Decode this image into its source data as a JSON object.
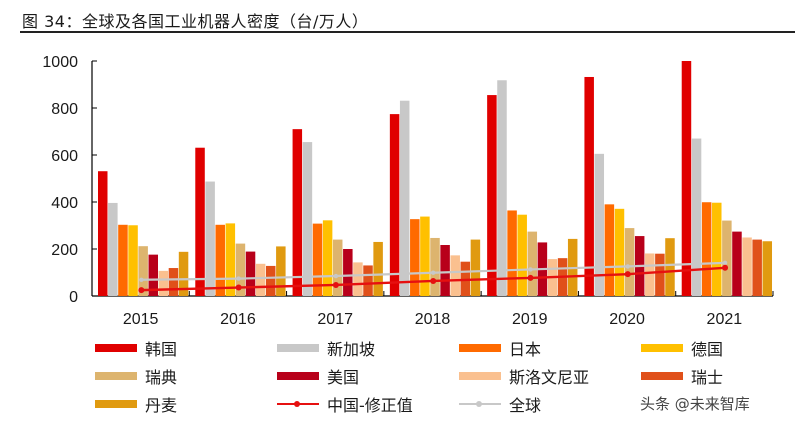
{
  "header": {
    "title": "图 34：全球及各国工业机器人密度（台/万人）"
  },
  "watermark": "头条 @未来智库",
  "chart_data": {
    "type": "bar",
    "title": "全球及各国工业机器人密度（台/万人）",
    "xlabel": "",
    "ylabel": "",
    "ylim": [
      0,
      1000
    ],
    "yticks": [
      0,
      200,
      400,
      600,
      800,
      1000
    ],
    "grid": false,
    "legend_position": "bottom",
    "categories": [
      "2015",
      "2016",
      "2017",
      "2018",
      "2019",
      "2020",
      "2021"
    ],
    "series": [
      {
        "name": "韩国",
        "type": "bar",
        "color": "#E00000",
        "values": [
          531,
          631,
          710,
          774,
          855,
          932,
          1000
        ]
      },
      {
        "name": "新加坡",
        "type": "bar",
        "color": "#C8C8C8",
        "values": [
          396,
          487,
          655,
          831,
          918,
          605,
          670
        ]
      },
      {
        "name": "日本",
        "type": "bar",
        "color": "#FF6A00",
        "values": [
          303,
          303,
          308,
          327,
          364,
          390,
          399
        ]
      },
      {
        "name": "德国",
        "type": "bar",
        "color": "#FFC000",
        "values": [
          301,
          309,
          322,
          338,
          346,
          371,
          397
        ]
      },
      {
        "name": "瑞典",
        "type": "bar",
        "color": "#DDB46E",
        "values": [
          212,
          223,
          240,
          247,
          274,
          289,
          321
        ]
      },
      {
        "name": "美国",
        "type": "bar",
        "color": "#B8001A",
        "values": [
          176,
          189,
          200,
          217,
          228,
          255,
          274
        ]
      },
      {
        "name": "斯洛文尼亚",
        "type": "bar",
        "color": "#FAC08F",
        "values": [
          107,
          137,
          143,
          173,
          157,
          181,
          249
        ]
      },
      {
        "name": "瑞士",
        "type": "bar",
        "color": "#E0501A",
        "values": [
          119,
          128,
          130,
          146,
          161,
          180,
          240
        ]
      },
      {
        "name": "丹麦",
        "type": "bar",
        "color": "#E09A10",
        "values": [
          188,
          211,
          230,
          240,
          243,
          246,
          233
        ]
      },
      {
        "name": "中国-修正值",
        "type": "line",
        "color": "#E61010",
        "values": [
          25,
          36,
          47,
          64,
          77,
          93,
          120
        ]
      },
      {
        "name": "全球",
        "type": "line",
        "color": "#C8C8C8",
        "values": [
          69,
          74,
          85,
          99,
          113,
          126,
          141
        ]
      }
    ]
  }
}
